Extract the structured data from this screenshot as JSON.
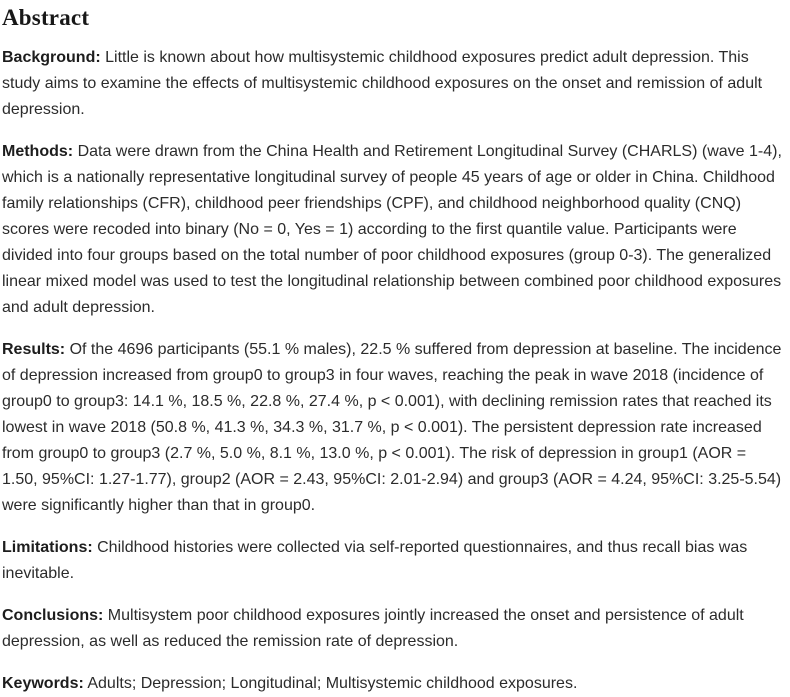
{
  "abstract": {
    "title": "Abstract",
    "sections": [
      {
        "label": "Background:",
        "text": "Little is known about how multisystemic childhood exposures predict adult depression. This study aims to examine the effects of multisystemic childhood exposures on the onset and remission of adult depression."
      },
      {
        "label": "Methods:",
        "text": "Data were drawn from the China Health and Retirement Longitudinal Survey (CHARLS) (wave 1-4), which is a nationally representative longitudinal survey of people 45 years of age or older in China. Childhood family relationships (CFR), childhood peer friendships (CPF), and childhood neighborhood quality (CNQ) scores were recoded into binary (No = 0, Yes = 1) according to the first quantile value. Participants were divided into four groups based on the total number of poor childhood exposures (group 0-3). The generalized linear mixed model was used to test the longitudinal relationship between combined poor childhood exposures and adult depression."
      },
      {
        "label": "Results:",
        "text": "Of the 4696 participants (55.1 % males), 22.5 % suffered from depression at baseline. The incidence of depression increased from group0 to group3 in four waves, reaching the peak in wave 2018 (incidence of group0 to group3: 14.1 %, 18.5 %, 22.8 %, 27.4 %, p < 0.001), with declining remission rates that reached its lowest in wave 2018 (50.8 %, 41.3 %, 34.3 %, 31.7 %, p < 0.001). The persistent depression rate increased from group0 to group3 (2.7 %, 5.0 %, 8.1 %, 13.0 %, p < 0.001). The risk of depression in group1 (AOR = 1.50, 95%CI: 1.27-1.77), group2 (AOR = 2.43, 95%CI: 2.01-2.94) and group3 (AOR = 4.24, 95%CI: 3.25-5.54) were significantly higher than that in group0."
      },
      {
        "label": "Limitations:",
        "text": "Childhood histories were collected via self-reported questionnaires, and thus recall bias was inevitable."
      },
      {
        "label": "Conclusions:",
        "text": "Multisystem poor childhood exposures jointly increased the onset and persistence of adult depression, as well as reduced the remission rate of depression."
      },
      {
        "label": "Keywords:",
        "text": "Adults; Depression; Longitudinal; Multisystemic childhood exposures."
      }
    ]
  }
}
